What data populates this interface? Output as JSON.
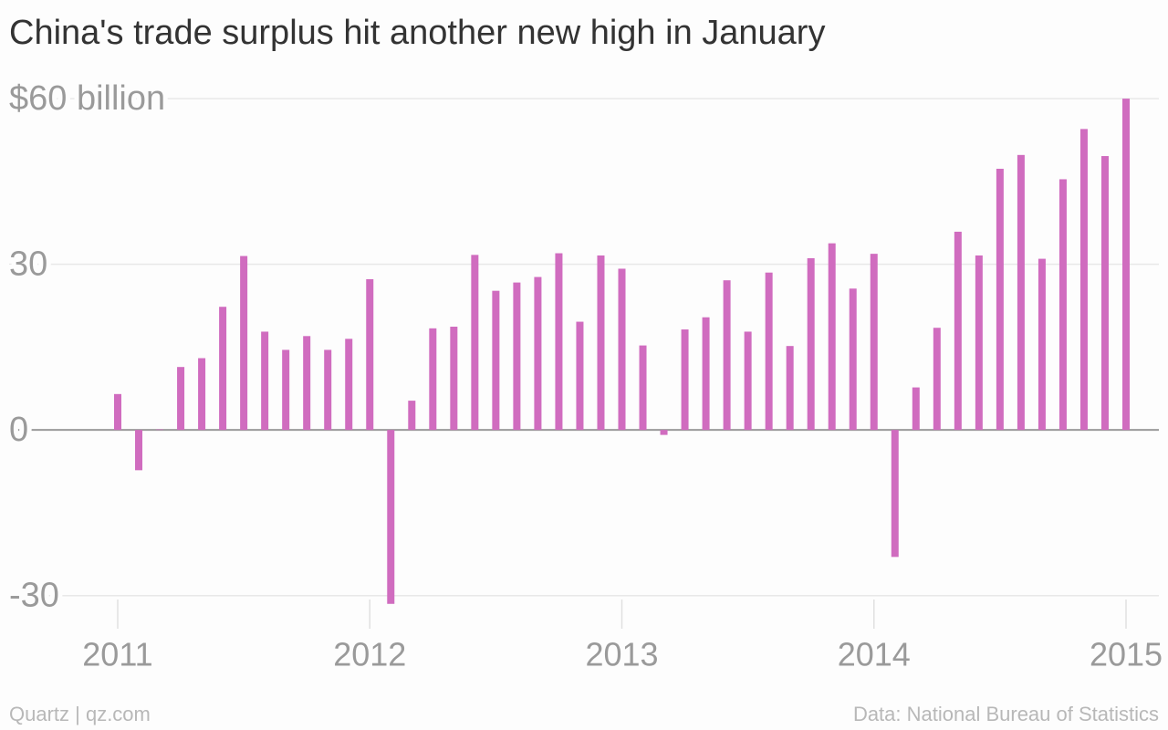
{
  "chart_data": {
    "type": "bar",
    "title": "China's trade surplus hit another new high in January",
    "source": "Data: National Bureau of Statistics",
    "credit": "Quartz | qz.com",
    "categories": [
      "2011",
      null,
      null,
      null,
      null,
      null,
      null,
      null,
      null,
      null,
      null,
      null,
      "2012",
      null,
      null,
      null,
      null,
      null,
      null,
      null,
      null,
      null,
      null,
      null,
      "2013",
      null,
      null,
      null,
      null,
      null,
      null,
      null,
      null,
      null,
      null,
      null,
      "2014",
      null,
      null,
      null,
      null,
      null,
      null,
      null,
      null,
      null,
      null,
      null,
      "2015"
    ],
    "values": [
      6.5,
      -7.3,
      0.1,
      11.4,
      13.0,
      22.3,
      31.5,
      17.8,
      14.5,
      17.0,
      14.5,
      16.5,
      27.3,
      -31.5,
      5.3,
      18.4,
      18.7,
      31.7,
      25.2,
      26.7,
      27.7,
      32.0,
      19.6,
      31.6,
      29.2,
      15.3,
      -0.9,
      18.2,
      20.4,
      27.1,
      17.8,
      28.5,
      15.2,
      31.1,
      33.8,
      25.6,
      31.9,
      -23.0,
      7.7,
      18.5,
      35.9,
      31.6,
      47.3,
      49.8,
      31.0,
      45.4,
      54.5,
      49.6,
      60.0
    ],
    "color": "#d06cbf",
    "ylim": [
      -36,
      62
    ],
    "yticks": [
      -30,
      0,
      30,
      {
        "value": 60,
        "label": "$60 billion"
      }
    ],
    "grid": true
  }
}
